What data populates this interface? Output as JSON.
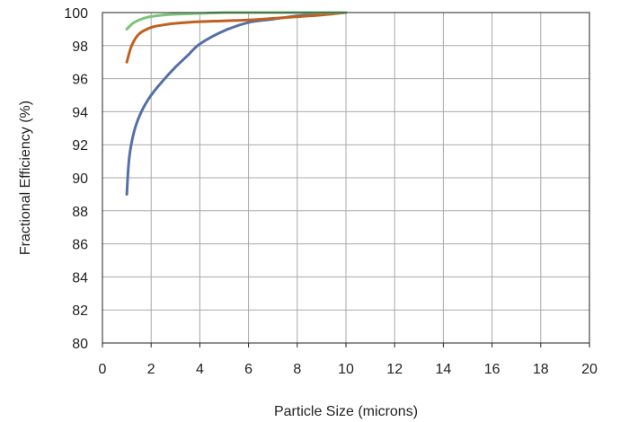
{
  "chart_data": {
    "type": "line",
    "title": "",
    "xlabel": "Particle Size (microns)",
    "ylabel": "Fractional Efficiency (%)",
    "xlim": [
      0,
      20
    ],
    "ylim": [
      80,
      100
    ],
    "x_ticks": [
      0,
      2,
      4,
      6,
      8,
      10,
      12,
      14,
      16,
      18,
      20
    ],
    "y_ticks": [
      80,
      82,
      84,
      86,
      88,
      90,
      92,
      94,
      96,
      98,
      100
    ],
    "grid": true,
    "legend": "none",
    "series": [
      {
        "color": "#5570a8",
        "points": [
          [
            1,
            89.0
          ],
          [
            1.1,
            91.2
          ],
          [
            1.3,
            92.8
          ],
          [
            1.6,
            94.0
          ],
          [
            2,
            95.0
          ],
          [
            2.5,
            95.9
          ],
          [
            3,
            96.7
          ],
          [
            3.5,
            97.4
          ],
          [
            4,
            98.1
          ],
          [
            5,
            98.9
          ],
          [
            6,
            99.4
          ],
          [
            7,
            99.6
          ],
          [
            8,
            99.8
          ],
          [
            9,
            99.9
          ],
          [
            10,
            100.0
          ]
        ]
      },
      {
        "color": "#c0601f",
        "points": [
          [
            1,
            97.0
          ],
          [
            1.2,
            98.0
          ],
          [
            1.5,
            98.7
          ],
          [
            2,
            99.1
          ],
          [
            2.5,
            99.25
          ],
          [
            3,
            99.35
          ],
          [
            4,
            99.45
          ],
          [
            5,
            99.5
          ],
          [
            6,
            99.55
          ],
          [
            7,
            99.65
          ],
          [
            8,
            99.75
          ],
          [
            9,
            99.85
          ],
          [
            10,
            100.0
          ]
        ]
      },
      {
        "color": "#7cc47a",
        "points": [
          [
            1,
            99.0
          ],
          [
            1.3,
            99.4
          ],
          [
            1.8,
            99.7
          ],
          [
            2.5,
            99.85
          ],
          [
            3,
            99.9
          ],
          [
            4,
            99.95
          ],
          [
            5,
            100.0
          ],
          [
            6,
            100.0
          ],
          [
            8,
            100.0
          ],
          [
            10,
            100.0
          ]
        ]
      }
    ]
  }
}
